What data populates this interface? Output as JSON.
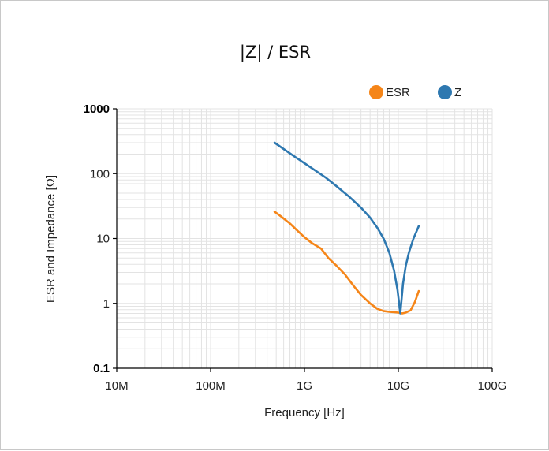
{
  "chart_data": {
    "type": "line",
    "title": "|Z| / ESR",
    "xlabel": "Frequency [Hz]",
    "ylabel": "ESR and Impedance [Ω]",
    "x_scale": "log",
    "y_scale": "log",
    "xlim": [
      10000000,
      100000000000
    ],
    "ylim": [
      0.1,
      1000
    ],
    "grid": true,
    "legend_position": "top-right",
    "x_ticks": [
      {
        "value": 10000000,
        "label": "10M"
      },
      {
        "value": 100000000,
        "label": "100M"
      },
      {
        "value": 1000000000,
        "label": "1G"
      },
      {
        "value": 10000000000,
        "label": "10G"
      },
      {
        "value": 100000000000,
        "label": "100G"
      }
    ],
    "y_ticks": [
      {
        "value": 0.1,
        "label": "0.1",
        "bold": true
      },
      {
        "value": 1,
        "label": "1",
        "bold": false
      },
      {
        "value": 10,
        "label": "10",
        "bold": false
      },
      {
        "value": 100,
        "label": "100",
        "bold": false
      },
      {
        "value": 1000,
        "label": "1000",
        "bold": true
      }
    ],
    "series": [
      {
        "name": "ESR",
        "color": "#f58518",
        "x": [
          480000000,
          560000000,
          700000000,
          850000000,
          1000000000,
          1200000000,
          1500000000,
          1800000000,
          2200000000,
          2700000000,
          3300000000,
          4000000000,
          5000000000,
          6000000000,
          7000000000,
          8000000000,
          9000000000,
          10000000000,
          11000000000,
          12000000000,
          13500000000,
          15000000000,
          16500000000
        ],
        "y": [
          26,
          22,
          17,
          13,
          10.5,
          8.5,
          7,
          5,
          3.8,
          2.8,
          1.9,
          1.35,
          1.0,
          0.82,
          0.76,
          0.74,
          0.73,
          0.72,
          0.7,
          0.72,
          0.78,
          1.05,
          1.55
        ]
      },
      {
        "name": "Z",
        "color": "#2e78b0",
        "x": [
          480000000,
          600000000,
          800000000,
          1000000000,
          1300000000,
          1700000000,
          2200000000,
          3000000000,
          4000000000,
          5000000000,
          6000000000,
          7000000000,
          8000000000,
          9000000000,
          9800000000,
          10500000000,
          11200000000,
          12000000000,
          13000000000,
          14500000000,
          16500000000
        ],
        "y": [
          300,
          240,
          180,
          145,
          112,
          86,
          64,
          44,
          30,
          21,
          14.5,
          9.8,
          6.1,
          3.2,
          1.6,
          0.7,
          2.0,
          3.8,
          6.2,
          10,
          15.5
        ]
      }
    ]
  }
}
